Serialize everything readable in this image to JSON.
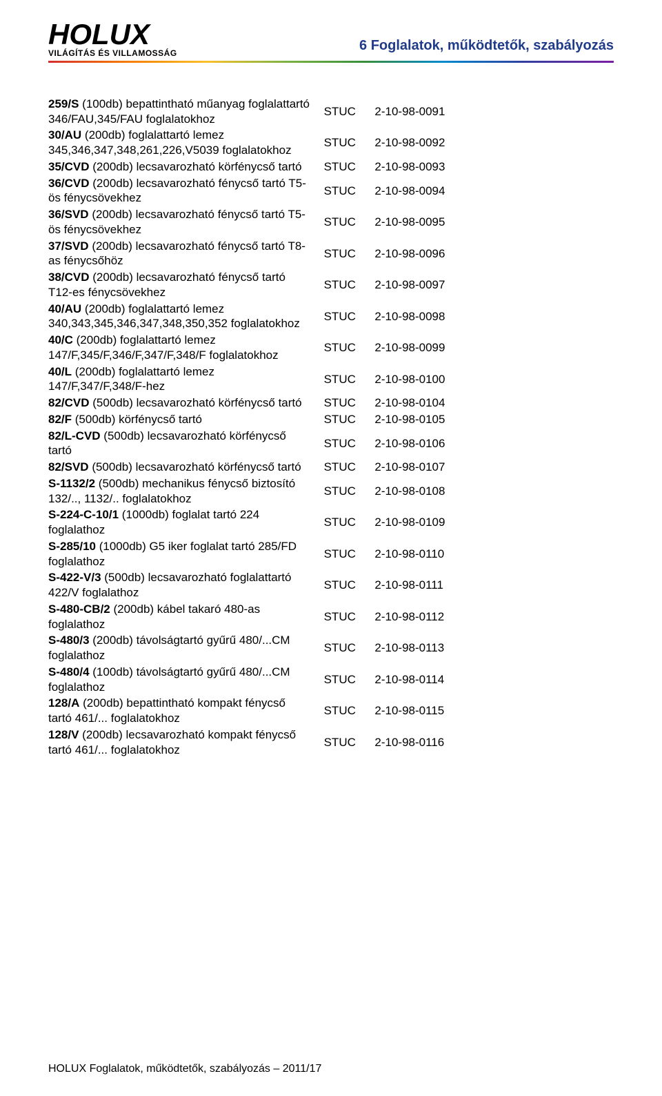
{
  "colors": {
    "header_title": "#1f3b8a",
    "text": "#000000",
    "background": "#ffffff",
    "rainbow": [
      "#d32f2f",
      "#f57c00",
      "#fbc02d",
      "#7cb342",
      "#388e3c",
      "#0288d1",
      "#303f9f",
      "#7b1fa2"
    ]
  },
  "typography": {
    "body_family": "Arial, Helvetica, sans-serif",
    "body_size_pt": 12,
    "logo_main_size_pt": 32,
    "logo_sub_size_pt": 9,
    "header_title_size_pt": 15
  },
  "logo": {
    "main": "HOLUX",
    "sub": "VILÁGÍTÁS ÉS VILLAMOSSÁG"
  },
  "header_title": "6 Foglalatok, működtetők, szabályozás",
  "footer": "HOLUX  Foglalatok, működtetők, szabályozás – 2011/17",
  "rows": [
    {
      "bold": "259/S",
      "rest": " (100db) bepattintható műanyag foglalattartó 346/FAU,345/FAU foglalatokhoz",
      "code": "STUC",
      "num": "2-10-98-0091"
    },
    {
      "bold": "30/AU",
      "rest": " (200db) foglalattartó lemez 345,346,347,348,261,226,V5039 foglalatokhoz",
      "code": "STUC",
      "num": "2-10-98-0092"
    },
    {
      "bold": "35/CVD",
      "rest": " (200db) lecsavarozható körfénycső tartó",
      "code": "STUC",
      "num": "2-10-98-0093"
    },
    {
      "bold": "36/CVD",
      "rest": " (200db) lecsavarozható fénycső tartó T5-ös fénycsövekhez",
      "code": "STUC",
      "num": "2-10-98-0094"
    },
    {
      "bold": "36/SVD",
      "rest": " (200db) lecsavarozható fénycső tartó T5-ös fénycsövekhez",
      "code": "STUC",
      "num": "2-10-98-0095"
    },
    {
      "bold": "37/SVD",
      "rest": " (200db) lecsavarozható fénycső tartó T8-as fénycsőhöz",
      "code": "STUC",
      "num": "2-10-98-0096"
    },
    {
      "bold": "38/CVD",
      "rest": " (200db) lecsavarozható fénycső tartó T12-es fénycsövekhez",
      "code": "STUC",
      "num": "2-10-98-0097"
    },
    {
      "bold": "40/AU",
      "rest": " (200db) foglalattartó lemez 340,343,345,346,347,348,350,352 foglalatokhoz",
      "code": "STUC",
      "num": "2-10-98-0098"
    },
    {
      "bold": "40/C",
      "rest": " (200db) foglalattartó lemez 147/F,345/F,346/F,347/F,348/F foglalatokhoz",
      "code": "STUC",
      "num": "2-10-98-0099"
    },
    {
      "bold": "40/L",
      "rest": " (200db) foglalattartó lemez 147/F,347/F,348/F-hez",
      "code": "STUC",
      "num": "2-10-98-0100"
    },
    {
      "bold": "82/CVD",
      "rest": " (500db) lecsavarozható körfénycső tartó",
      "code": "STUC",
      "num": "2-10-98-0104"
    },
    {
      "bold": "82/F",
      "rest": " (500db) körfénycső tartó",
      "code": "STUC",
      "num": "2-10-98-0105"
    },
    {
      "bold": "82/L-CVD",
      "rest": " (500db) lecsavarozható körfénycső tartó",
      "code": "STUC",
      "num": "2-10-98-0106"
    },
    {
      "bold": "82/SVD",
      "rest": " (500db) lecsavarozható körfénycső tartó",
      "code": "STUC",
      "num": "2-10-98-0107"
    },
    {
      "bold": "S-1132/2",
      "rest": " (500db) mechanikus fénycső biztosító 132/.., 1132/.. foglalatokhoz",
      "code": "STUC",
      "num": "2-10-98-0108"
    },
    {
      "bold": "S-224-C-10/1",
      "rest": " (1000db) foglalat tartó 224 foglalathoz",
      "code": "STUC",
      "num": "2-10-98-0109"
    },
    {
      "bold": "S-285/10",
      "rest": " (1000db) G5 iker foglalat tartó 285/FD foglalathoz",
      "code": "STUC",
      "num": "2-10-98-0110"
    },
    {
      "bold": "S-422-V/3",
      "rest": " (500db) lecsavarozható foglalattartó 422/V foglalathoz",
      "code": "STUC",
      "num": "2-10-98-0111"
    },
    {
      "bold": "S-480-CB/2",
      "rest": " (200db) kábel takaró 480-as foglalathoz",
      "code": "STUC",
      "num": "2-10-98-0112"
    },
    {
      "bold": "S-480/3",
      "rest": " (200db) távolságtartó gyűrű 480/...CM foglalathoz",
      "code": "STUC",
      "num": "2-10-98-0113"
    },
    {
      "bold": "S-480/4",
      "rest": " (100db) távolságtartó gyűrű 480/...CM foglalathoz",
      "code": "STUC",
      "num": "2-10-98-0114"
    },
    {
      "bold": "128/A",
      "rest": " (200db) bepattintható kompakt fénycső tartó 461/... foglalatokhoz",
      "code": "STUC",
      "num": "2-10-98-0115"
    },
    {
      "bold": "128/V",
      "rest": " (200db) lecsavarozható kompakt fénycső tartó 461/... foglalatokhoz",
      "code": "STUC",
      "num": "2-10-98-0116"
    }
  ]
}
